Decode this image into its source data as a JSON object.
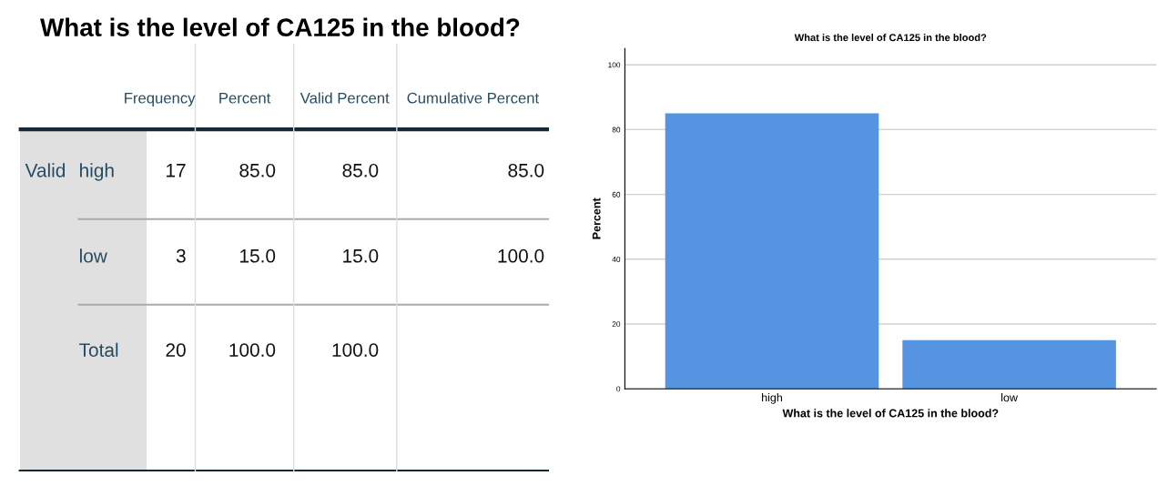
{
  "chart_data": [
    {
      "type": "other",
      "title": "What is the level of CA125 in the blood?",
      "annotations": [
        "Frequency",
        "Percent",
        "Valid Percent",
        "Cumulative Percent",
        "Valid",
        "high",
        "17",
        "85.0",
        "85.0",
        "85.0",
        "low",
        "3",
        "15.0",
        "15.0",
        "100.0",
        "Total",
        "20",
        "100.0",
        "100.0"
      ]
    },
    {
      "type": "bar",
      "title": "What is the level of CA125 in the blood?",
      "xlabel": "What is the level of CA125 in the blood?",
      "ylabel": "Percent",
      "categories": [
        "high",
        "low"
      ],
      "values": [
        85,
        15
      ],
      "color": "#5594e1",
      "ylim": [
        0,
        105
      ],
      "yticks": [
        0,
        20,
        40,
        60,
        80,
        100
      ],
      "grid": "y"
    }
  ]
}
